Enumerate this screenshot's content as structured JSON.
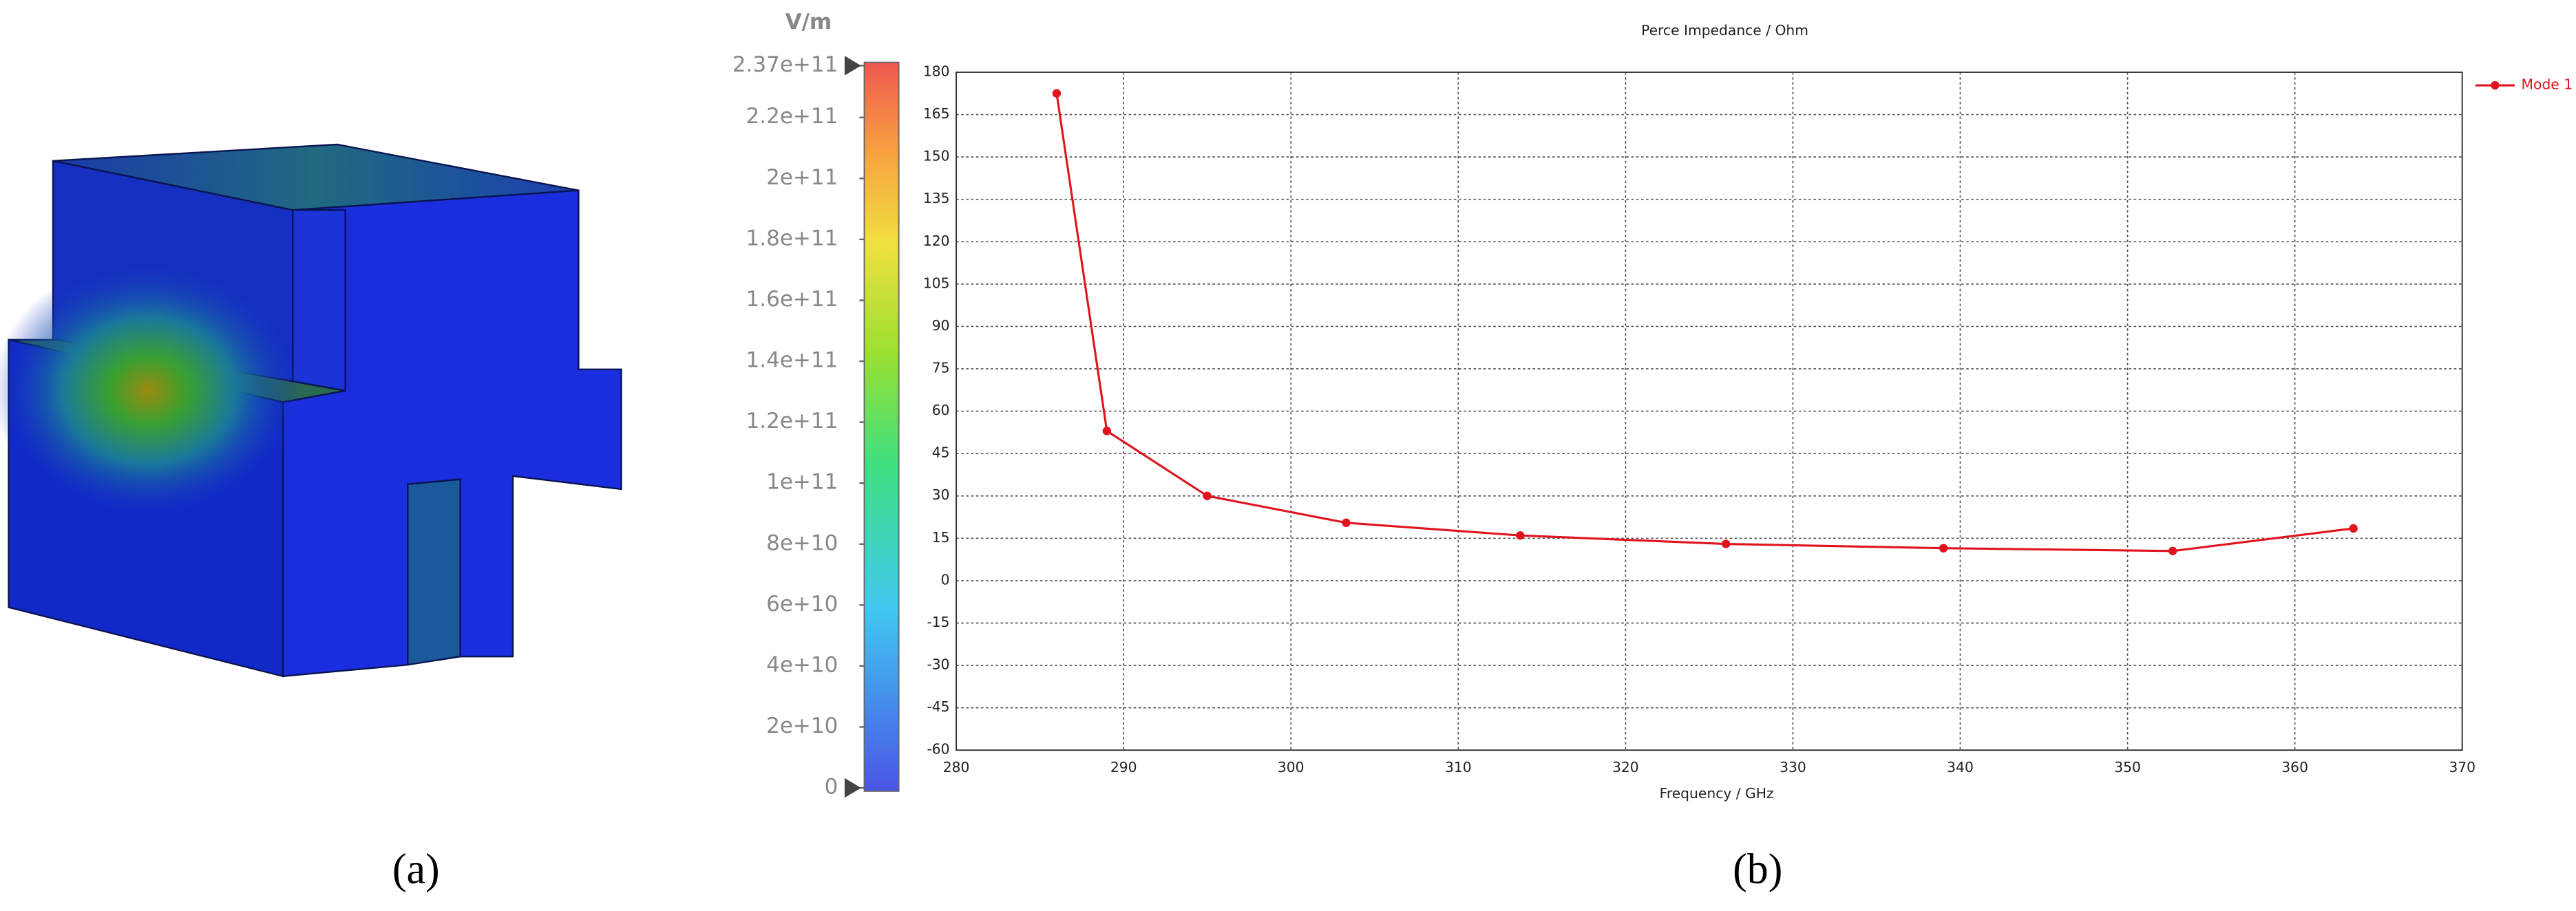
{
  "panel_labels": [
    "(a)",
    "(b)"
  ],
  "chart_data": [
    {
      "type": "colorbar",
      "unit": "V/m",
      "clim": [
        0,
        237000000000
      ],
      "ticks": [
        {
          "value": 237000000000,
          "label": "2.37e+11"
        },
        {
          "value": 220000000000,
          "label": "2.2e+11"
        },
        {
          "value": 200000000000,
          "label": "2e+11"
        },
        {
          "value": 180000000000,
          "label": "1.8e+11"
        },
        {
          "value": 160000000000,
          "label": "1.6e+11"
        },
        {
          "value": 140000000000,
          "label": "1.4e+11"
        },
        {
          "value": 120000000000,
          "label": "1.2e+11"
        },
        {
          "value": 100000000000,
          "label": "1e+11"
        },
        {
          "value": 80000000000,
          "label": "8e+10"
        },
        {
          "value": 60000000000,
          "label": "6e+10"
        },
        {
          "value": 40000000000,
          "label": "4e+10"
        },
        {
          "value": 20000000000,
          "label": "2e+10"
        },
        0
      ]
    },
    {
      "type": "line",
      "title": "Perce Impedance / Ohm",
      "x_label": "Frequency / GHz",
      "x": [
        286,
        289,
        295,
        303.3,
        313.7,
        326,
        339,
        352.7,
        363.5
      ],
      "series": [
        {
          "name": "Mode 1",
          "color": "#e0141e",
          "values": [
            172.5,
            53,
            30,
            20.5,
            16,
            13,
            11.5,
            10.5,
            18.5
          ]
        }
      ],
      "xlim": [
        280,
        370
      ],
      "xticks": [
        280,
        290,
        300,
        310,
        320,
        330,
        340,
        350,
        360,
        370
      ],
      "ylim": [
        -60,
        180
      ],
      "yticks": [
        -60,
        -45,
        -30,
        -15,
        0,
        15,
        30,
        45,
        60,
        75,
        90,
        105,
        120,
        135,
        150,
        165,
        180
      ],
      "grid": true,
      "legend": "top-right"
    }
  ]
}
